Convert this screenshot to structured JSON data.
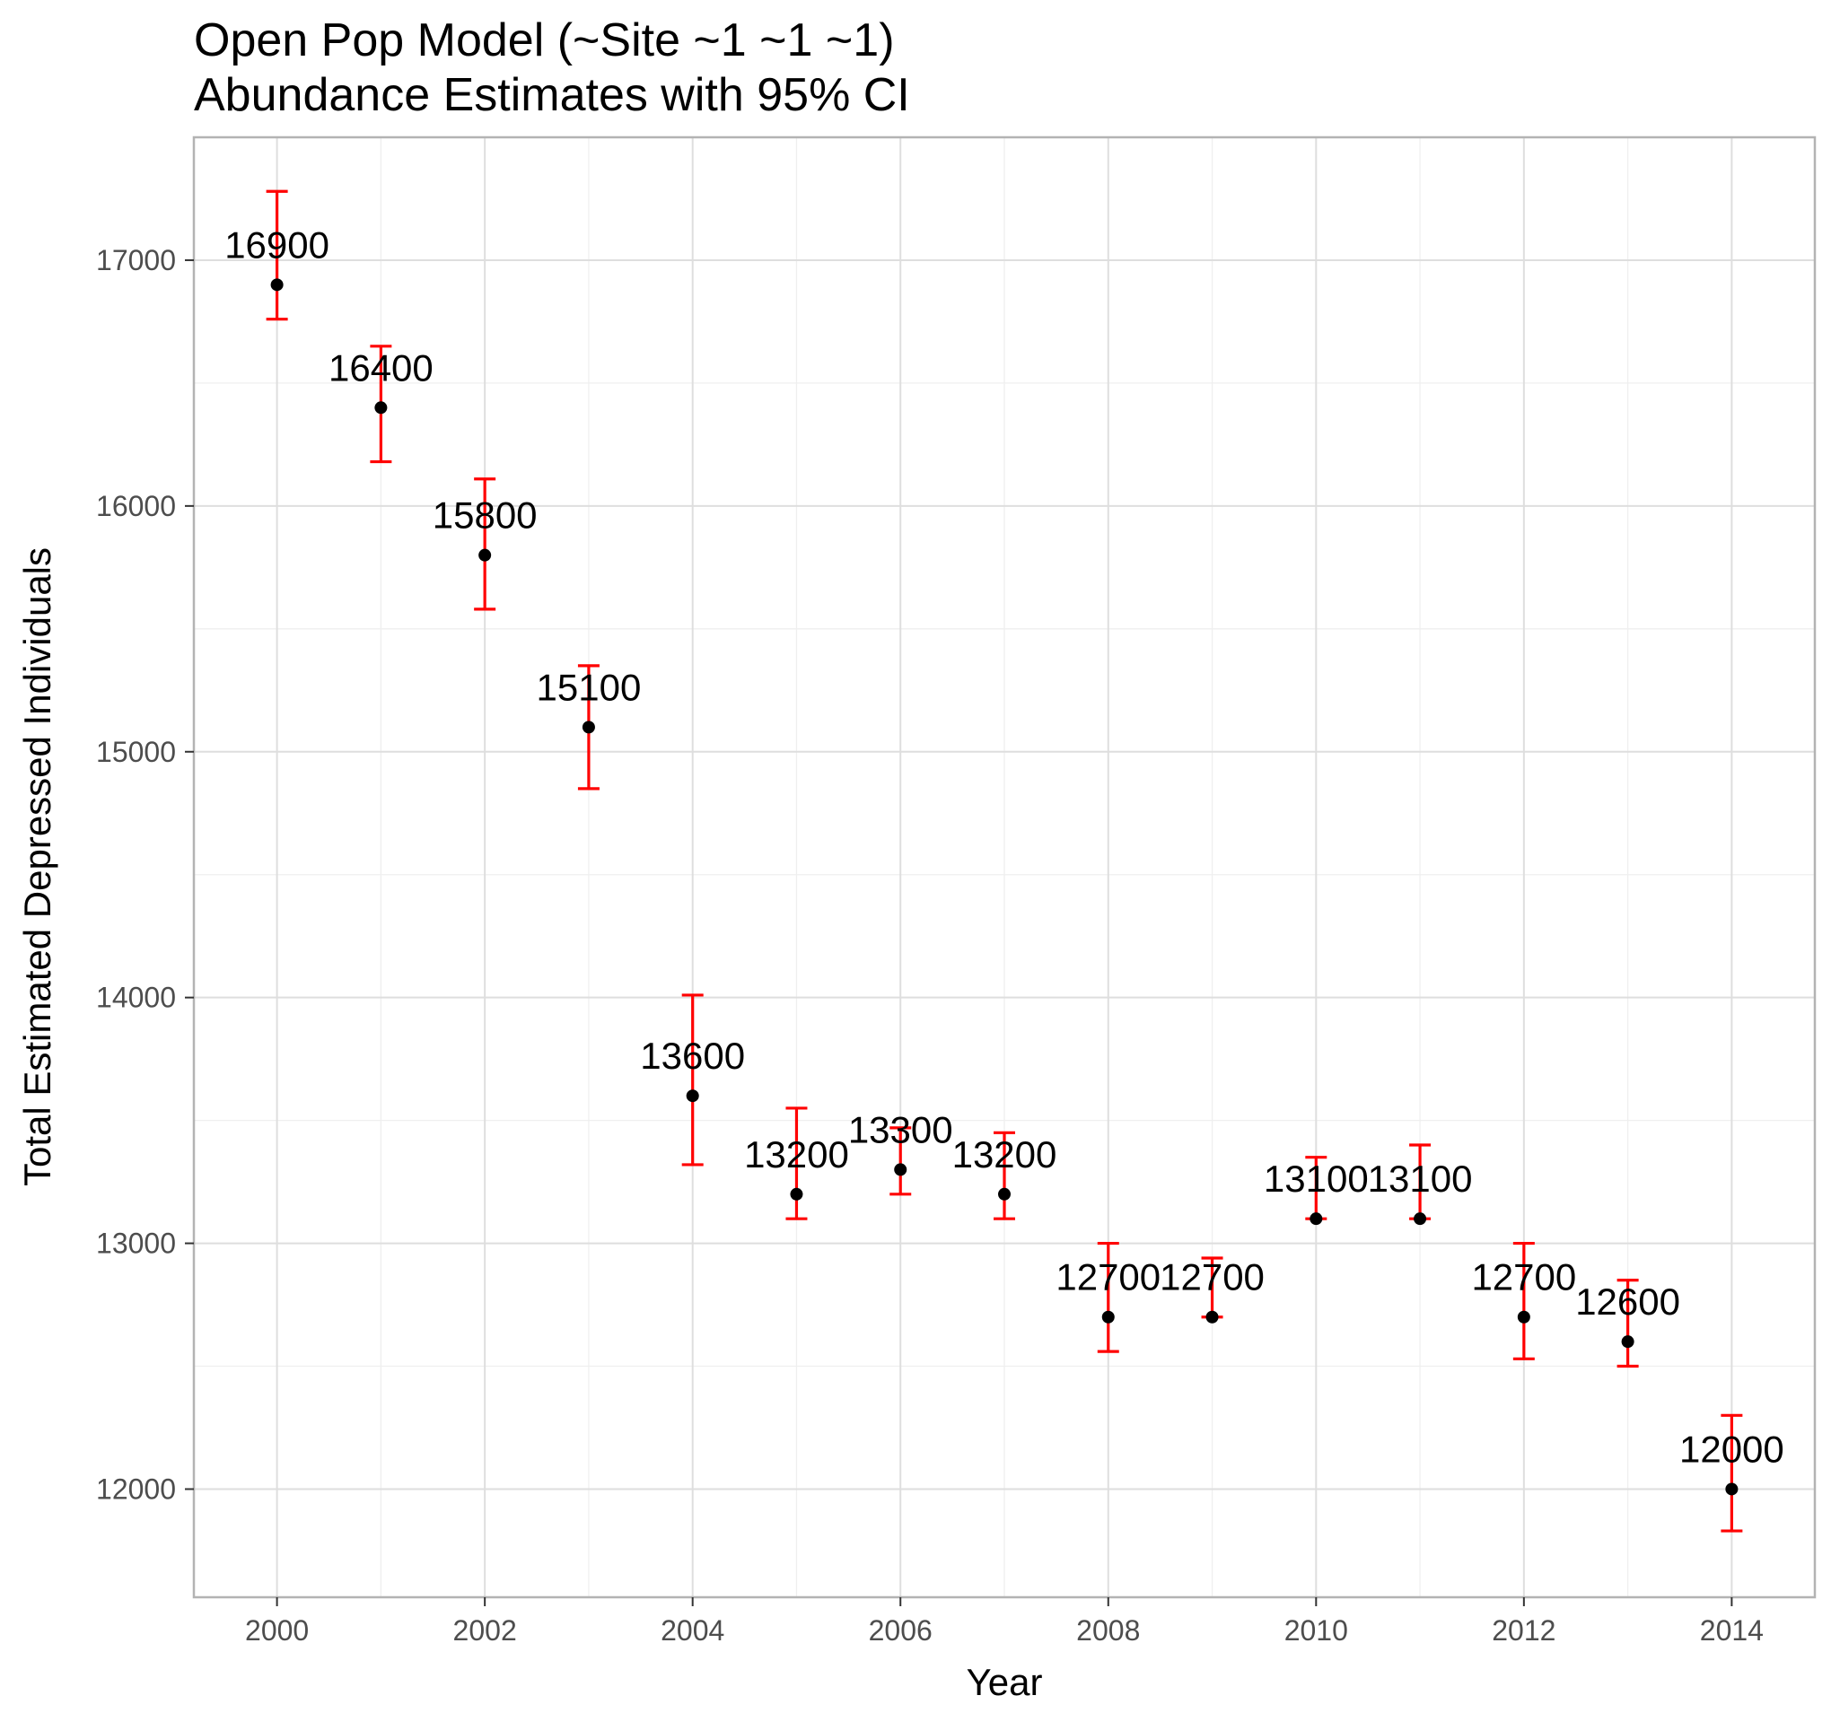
{
  "chart_data": {
    "type": "scatter",
    "title": "Open Pop Model (~Site ~1 ~1 ~1)",
    "subtitle": "Abundance Estimates with 95% CI",
    "xlabel": "Year",
    "ylabel": "Total Estimated Depressed Individuals",
    "xlim": [
      1999.2,
      2014.8
    ],
    "ylim": [
      11560,
      17500
    ],
    "x_ticks": [
      2000,
      2002,
      2004,
      2006,
      2008,
      2010,
      2012,
      2014
    ],
    "y_ticks": [
      12000,
      13000,
      14000,
      15000,
      16000,
      17000
    ],
    "grid": true,
    "theme": "light",
    "colors": {
      "point": "#000000",
      "errorbar": "#ff0000",
      "grid_major": "#dedede",
      "grid_minor": "#efefef",
      "panel_border": "#b3b3b3"
    },
    "series": [
      {
        "x": [
          2000,
          2001,
          2002,
          2003,
          2004,
          2005,
          2006,
          2007,
          2008,
          2009,
          2010,
          2011,
          2012,
          2013,
          2014
        ],
        "y": [
          16900,
          16400,
          15800,
          15100,
          13600,
          13200,
          13300,
          13200,
          12700,
          12700,
          13100,
          13100,
          12700,
          12600,
          12000
        ],
        "lower": [
          16760,
          16180,
          15580,
          14850,
          13320,
          13100,
          13200,
          13100,
          12560,
          12700,
          13100,
          13100,
          12530,
          12500,
          11830
        ],
        "upper": [
          17280,
          16650,
          16110,
          15350,
          14010,
          13550,
          13470,
          13450,
          13000,
          12940,
          13350,
          13400,
          13000,
          12850,
          12300
        ],
        "labels": [
          "16900",
          "16400",
          "15800",
          "15100",
          "13600",
          "13200",
          "13300",
          "13200",
          "12700",
          "12700",
          "13100",
          "13100",
          "12700",
          "12600",
          "12000"
        ]
      }
    ]
  }
}
